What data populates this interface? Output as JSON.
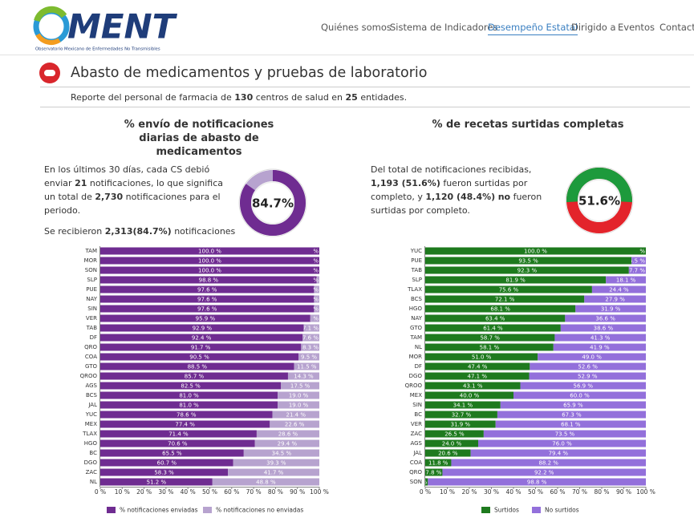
{
  "header": {
    "logo": "MENT",
    "logo_tagline": "Observatorio Mexicano de Enfermedades No Transmisibles",
    "nav": [
      "Quiénes somos",
      "Sistema de Indicadores",
      "Desempeño Estatal",
      "Dirigido a",
      "Eventos",
      "Contacto"
    ],
    "active_nav": 2
  },
  "section": {
    "title": "Abasto de medicamentos y pruebas de laboratorio",
    "report": [
      "Reporte del personal de farmacia de ",
      "130",
      " centros de salud en ",
      "25",
      " entidades."
    ]
  },
  "panels": [
    {
      "text": [
        "En los últimos 30 días, cada CS debió enviar ",
        "21",
        " notificaciones, lo que significa un total de ",
        "2,730",
        " notificaciones para el periodo."
      ],
      "note": [
        "Se recibieron ",
        "2,313(84.7%)",
        " notificaciones"
      ],
      "donut": {
        "value": 84.7,
        "label": "84.7%",
        "colors": [
          "#6f2c91",
          "#b7a3cf"
        ]
      }
    },
    {
      "text": [
        "Del total de notificaciones recibidas, ",
        "1,193 (51.6%)",
        " fueron surtidas por completo, y ",
        "1,120 (48.4%)",
        " ",
        "no",
        " fueron surtidas por completo."
      ],
      "donut": {
        "value": 51.6,
        "label": "51.6%",
        "colors": [
          "#1d9a3c",
          "#e3242b"
        ]
      }
    }
  ],
  "chart_data": [
    {
      "type": "bar",
      "orientation": "horizontal",
      "stacked": true,
      "title": "% envío de notificaciones diarias de abasto de medicamentos",
      "categories": [
        "TAM",
        "MOR",
        "SON",
        "SLP",
        "PUE",
        "NAY",
        "SIN",
        "VER",
        "TAB",
        "DF",
        "QRO",
        "COA",
        "GTO",
        "QROO",
        "AGS",
        "BCS",
        "JAL",
        "YUC",
        "MEX",
        "TLAX",
        "HGO",
        "BC",
        "DGO",
        "ZAC",
        "NL"
      ],
      "series": [
        {
          "name": "% notificaciones enviadas",
          "color": "#6f2c91",
          "values": [
            100.0,
            100.0,
            100.0,
            98.8,
            97.6,
            97.6,
            97.6,
            95.9,
            92.9,
            92.4,
            91.7,
            90.5,
            88.5,
            85.7,
            82.5,
            81.0,
            81.0,
            78.6,
            77.4,
            71.4,
            70.6,
            65.5,
            60.7,
            58.3,
            51.2
          ],
          "value_labels": [
            "100.0 %",
            "100.0 %",
            "100.0 %",
            "98.8 %",
            "97.6 %",
            "97.6 %",
            "97.6 %",
            "95.9 %",
            "92.9 %",
            "92.4 %",
            "91.7 %",
            "90.5 %",
            "88.5 %",
            "85.7 %",
            "82.5 %",
            "81.0 %",
            "81.0 %",
            "78.6 %",
            "77.4 %",
            "71.4 %",
            "70.6 %",
            "65.5 %",
            "60.7 %",
            "58.3 %",
            "51.2 %"
          ]
        },
        {
          "name": "% notificaciones no enviadas",
          "color": "#b7a3cf",
          "values": [
            0.0,
            0.0,
            0.0,
            1.2,
            2.4,
            2.4,
            2.4,
            4.1,
            7.1,
            7.6,
            8.3,
            9.5,
            11.5,
            14.3,
            17.5,
            19.0,
            19.0,
            21.4,
            22.6,
            28.6,
            29.4,
            34.5,
            39.3,
            41.7,
            48.8
          ],
          "value_labels": [
            "0.0 %",
            "0.0 %",
            "0.0 %",
            "1.2 %",
            "2.4 %",
            "2.4 %",
            "2.4 %",
            "4.1 %",
            "7.1 %",
            "7.6 %",
            "8.3 %",
            "9.5 %",
            "11.5 %",
            "14.3 %",
            "17.5 %",
            "19.0 %",
            "19.0 %",
            "21.4 %",
            "22.6 %",
            "28.6 %",
            "29.4 %",
            "34.5 %",
            "39.3 %",
            "41.7 %",
            "48.8 %"
          ]
        }
      ],
      "xlim": [
        0,
        100
      ],
      "xticks": [
        {
          "value": 0,
          "label": "0 %"
        },
        {
          "value": 10,
          "label": "10 %"
        },
        {
          "value": 20,
          "label": "20 %"
        },
        {
          "value": 30,
          "label": "30 %"
        },
        {
          "value": 40,
          "label": "40 %"
        },
        {
          "value": 50,
          "label": "50 %"
        },
        {
          "value": 60,
          "label": "60 %"
        },
        {
          "value": 70,
          "label": "70 %"
        },
        {
          "value": 80,
          "label": "80 %"
        },
        {
          "value": 90,
          "label": "90 %"
        },
        {
          "value": 100,
          "label": "100 %"
        }
      ],
      "grid": false,
      "legend": "bottom"
    },
    {
      "type": "bar",
      "orientation": "horizontal",
      "stacked": true,
      "title": "% de recetas surtidas completas",
      "categories": [
        "YUC",
        "PUE",
        "TAB",
        "SLP",
        "TLAX",
        "BCS",
        "HGO",
        "NAY",
        "GTO",
        "TAM",
        "NL",
        "MOR",
        "DF",
        "DGO",
        "QROO",
        "MEX",
        "SIN",
        "BC",
        "VER",
        "ZAC",
        "AGS",
        "JAL",
        "COA",
        "QRO",
        "SON"
      ],
      "series": [
        {
          "name": "Surtidos",
          "color": "#1e7a1e",
          "values": [
            100.0,
            93.5,
            92.3,
            81.9,
            75.6,
            72.1,
            68.1,
            63.4,
            61.4,
            58.7,
            58.1,
            51.0,
            47.4,
            47.1,
            43.1,
            40.0,
            34.1,
            32.7,
            31.9,
            26.5,
            24.0,
            20.6,
            11.8,
            7.8,
            1.2
          ],
          "value_labels": [
            "100.0 %",
            "93.5 %",
            "92.3 %",
            "81.9 %",
            "75.6 %",
            "72.1 %",
            "68.1 %",
            "63.4 %",
            "61.4 %",
            "58.7 %",
            "58.1 %",
            "51.0 %",
            "47.4 %",
            "47.1 %",
            "43.1 %",
            "40.0 %",
            "34.1 %",
            "32.7 %",
            "31.9 %",
            "26.5 %",
            "24.0 %",
            "20.6 %",
            "11.8 %",
            "7.8 %",
            "1.2 %"
          ]
        },
        {
          "name": "No surtidos",
          "color": "#9370db",
          "values": [
            0.0,
            6.5,
            7.7,
            18.1,
            24.4,
            27.9,
            31.9,
            36.6,
            38.6,
            41.3,
            41.9,
            49.0,
            52.6,
            52.9,
            56.9,
            60.0,
            65.9,
            67.3,
            68.1,
            73.5,
            76.0,
            79.4,
            88.2,
            92.2,
            98.8
          ],
          "value_labels": [
            "0.0 %",
            "6.5 %",
            "7.7 %",
            "18.1 %",
            "24.4 %",
            "27.9 %",
            "31.9 %",
            "36.6 %",
            "38.6 %",
            "41.3 %",
            "41.9 %",
            "49.0 %",
            "52.6 %",
            "52.9 %",
            "56.9 %",
            "60.0 %",
            "65.9 %",
            "67.3 %",
            "68.1 %",
            "73.5 %",
            "76.0 %",
            "79.4 %",
            "88.2 %",
            "92.2 %",
            "98.8 %"
          ]
        }
      ],
      "xlim": [
        0,
        100
      ],
      "xticks": [
        {
          "value": 0,
          "label": "0 %"
        },
        {
          "value": 10,
          "label": "10 %"
        },
        {
          "value": 20,
          "label": "20 %"
        },
        {
          "value": 30,
          "label": "30 %"
        },
        {
          "value": 40,
          "label": "40 %"
        },
        {
          "value": 50,
          "label": "50 %"
        },
        {
          "value": 60,
          "label": "60 %"
        },
        {
          "value": 70,
          "label": "70 %"
        },
        {
          "value": 80,
          "label": "80 %"
        },
        {
          "value": 90,
          "label": "90 %"
        },
        {
          "value": 100,
          "label": "100 %"
        }
      ],
      "grid": false,
      "legend": "bottom"
    }
  ]
}
